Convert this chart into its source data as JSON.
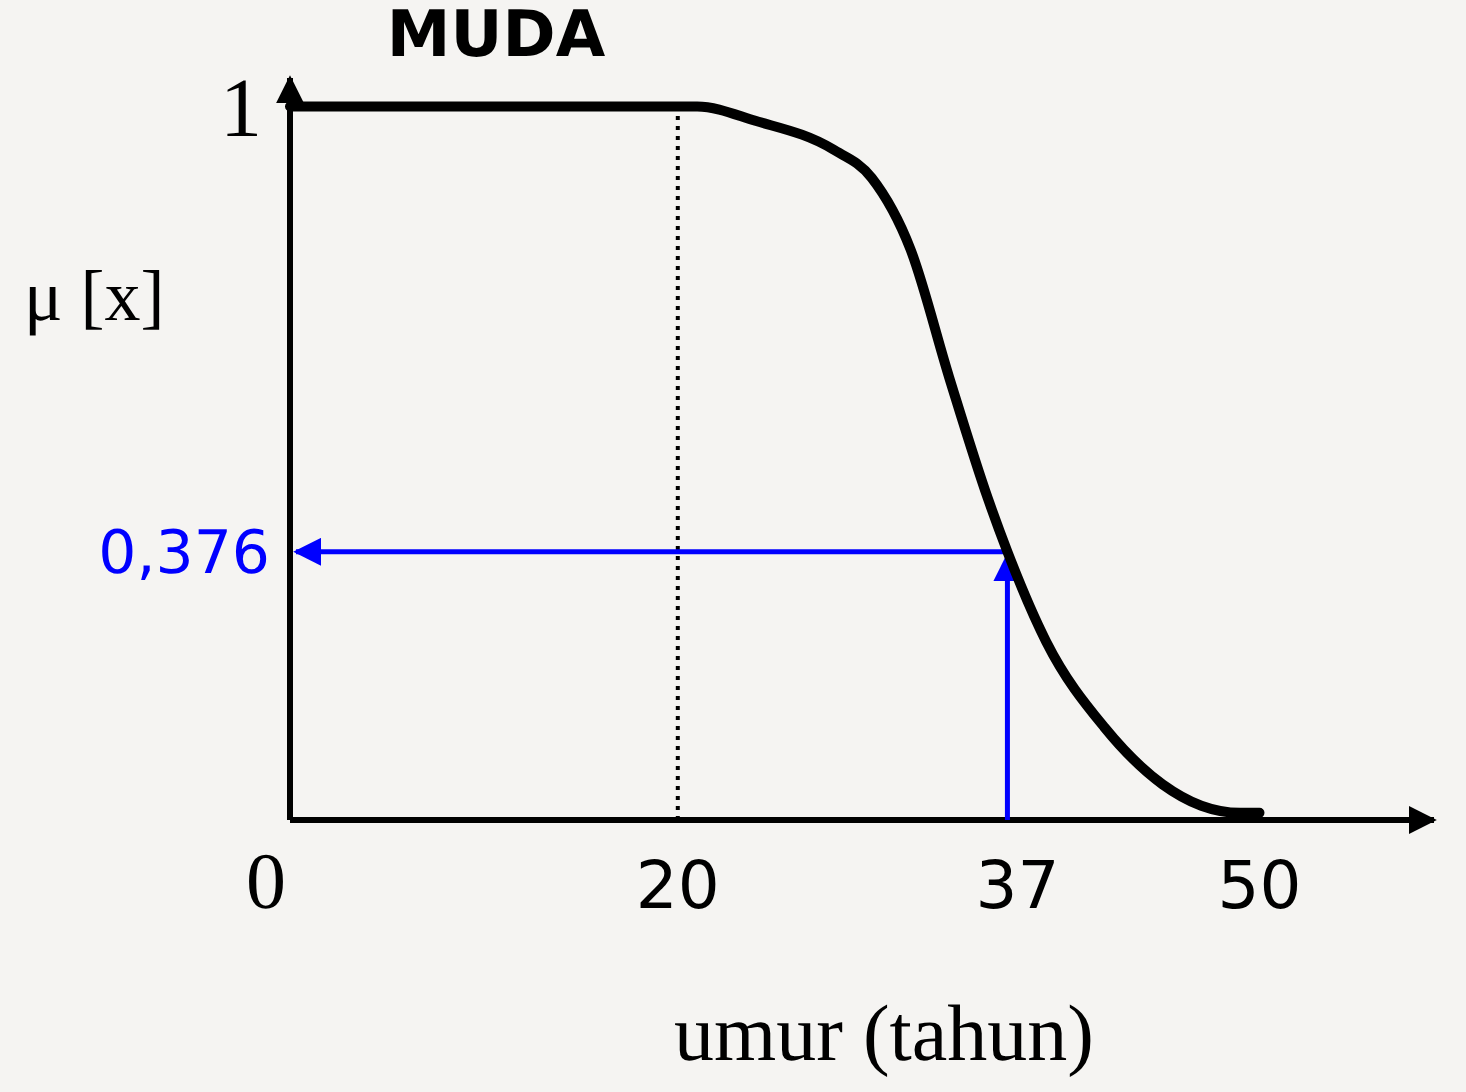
{
  "chart_data": {
    "type": "line",
    "title": "MUDA",
    "xlabel": "umur (tahun)",
    "ylabel": "μ [x]",
    "xlim": [
      0,
      59
    ],
    "ylim": [
      0,
      1.04
    ],
    "xticks": [
      0,
      20,
      37,
      50
    ],
    "yticks": [
      {
        "value": 0.376,
        "label": "0,376"
      },
      1
    ],
    "series": [
      {
        "color": "#000000",
        "x": [
          0,
          20,
          21,
          24,
          28,
          30,
          32,
          34,
          36,
          37,
          39,
          42,
          45,
          47,
          49,
          50
        ],
        "values": [
          1,
          1,
          1,
          0.98,
          0.94,
          0.9,
          0.8,
          0.62,
          0.45,
          0.376,
          0.25,
          0.13,
          0.05,
          0.02,
          0.01,
          0.01
        ]
      }
    ],
    "ref_lines": [
      {
        "axis": "x",
        "value": 20,
        "line_style": "dotted",
        "color": "#000000"
      },
      {
        "axis": "x",
        "value": 37,
        "line_style": "solid",
        "color": "#0000ff"
      },
      {
        "axis": "y",
        "value": 0.376,
        "line_style": "solid",
        "color": "#0000ff"
      }
    ],
    "grid": false,
    "marker": "none",
    "line_style": "solid"
  }
}
